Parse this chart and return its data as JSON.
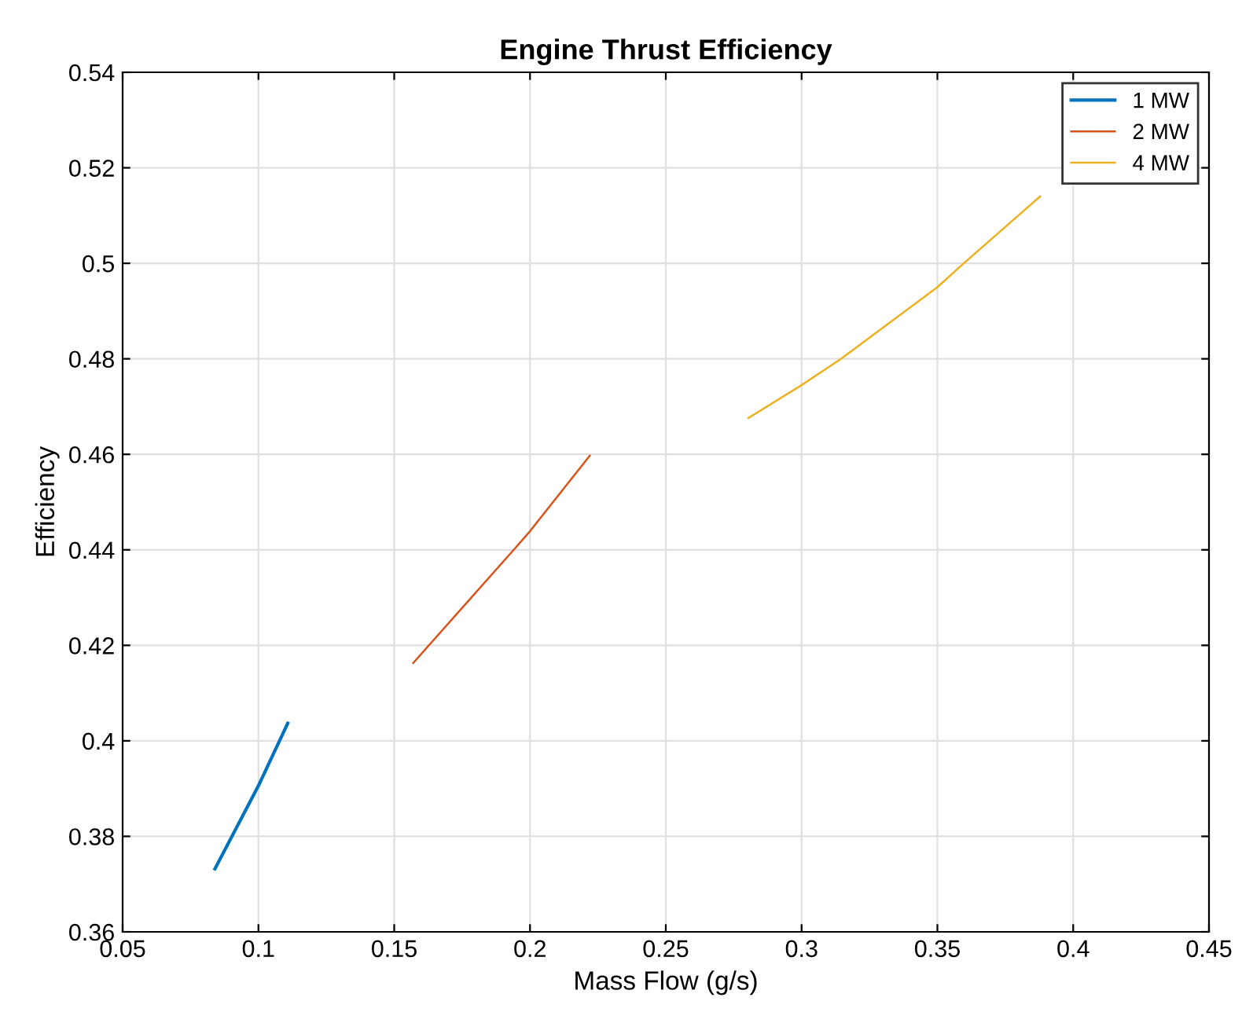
{
  "chart_data": {
    "type": "line",
    "title": "Engine Thrust Efficiency",
    "xlabel": "Mass Flow (g/s)",
    "ylabel": "Efficiency",
    "xlim": [
      0.05,
      0.45
    ],
    "ylim": [
      0.36,
      0.54
    ],
    "xticks": [
      0.05,
      0.1,
      0.15,
      0.2,
      0.25,
      0.3,
      0.35,
      0.4,
      0.45
    ],
    "yticks": [
      0.36,
      0.38,
      0.4,
      0.42,
      0.44,
      0.46,
      0.48,
      0.5,
      0.52,
      0.54
    ],
    "grid": true,
    "legend": "top right",
    "line_style": "solid",
    "marker": "none",
    "series": [
      {
        "name": "1 MW",
        "color": "#0072bd",
        "x": [
          0.084,
          0.1,
          0.1108
        ],
        "values": [
          0.3732,
          0.3906,
          0.4037
        ]
      },
      {
        "name": "2 MW",
        "color": "#d95319",
        "x": [
          0.157,
          0.194,
          0.2,
          0.222
        ],
        "values": [
          0.4163,
          0.44,
          0.4439,
          0.4597
        ]
      },
      {
        "name": "4 MW",
        "color": "#edb120",
        "x": [
          0.2804,
          0.3,
          0.3145,
          0.35,
          0.3597,
          0.3878
        ],
        "values": [
          0.4676,
          0.4745,
          0.48,
          0.495,
          0.5,
          0.514
        ]
      }
    ]
  }
}
